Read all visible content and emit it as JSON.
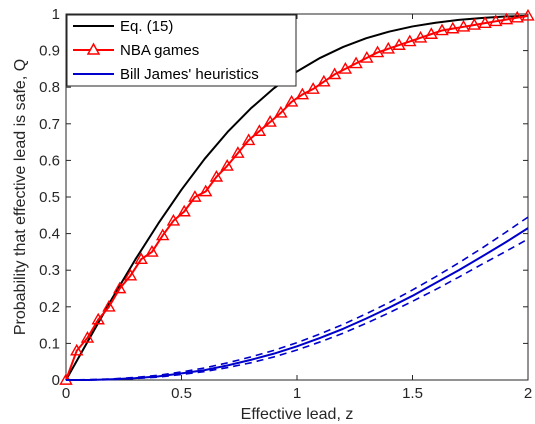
{
  "chart_data": {
    "type": "line",
    "title": "",
    "xlabel": "Effective lead, z",
    "ylabel": "Probability that effective lead is safe, Q",
    "xlim": [
      0,
      2
    ],
    "ylim": [
      0,
      1
    ],
    "xticks": [
      "0",
      "0.5",
      "1",
      "1.5",
      "2"
    ],
    "yticks": [
      "0",
      "0.1",
      "0.2",
      "0.3",
      "0.4",
      "0.5",
      "0.6",
      "0.7",
      "0.8",
      "0.9",
      "1"
    ],
    "grid": false,
    "legend_position": "top-left",
    "series": [
      {
        "name": "Eq. (15)",
        "color": "#000000",
        "style": "solid",
        "marker": "none",
        "x": [
          0,
          0.1,
          0.2,
          0.3,
          0.4,
          0.5,
          0.6,
          0.7,
          0.8,
          0.9,
          1.0,
          1.1,
          1.2,
          1.3,
          1.4,
          1.5,
          1.6,
          1.7,
          1.8,
          1.9,
          2.0
        ],
        "y": [
          0,
          0.112,
          0.223,
          0.329,
          0.428,
          0.52,
          0.604,
          0.678,
          0.742,
          0.797,
          0.843,
          0.88,
          0.91,
          0.934,
          0.952,
          0.966,
          0.976,
          0.984,
          0.989,
          0.993,
          0.995
        ]
      },
      {
        "name": "NBA games",
        "color": "#ff0000",
        "style": "solid",
        "marker": "triangle",
        "x": [
          0,
          0.0465,
          0.093,
          0.1395,
          0.186,
          0.2326,
          0.2791,
          0.3256,
          0.3721,
          0.4186,
          0.4651,
          0.5116,
          0.5581,
          0.6047,
          0.6512,
          0.6977,
          0.7442,
          0.7907,
          0.8372,
          0.8837,
          0.9302,
          0.9767,
          1.0233,
          1.0698,
          1.1163,
          1.1628,
          1.2093,
          1.2558,
          1.3023,
          1.3488,
          1.3953,
          1.4419,
          1.4884,
          1.5349,
          1.5814,
          1.6279,
          1.6744,
          1.7209,
          1.7674,
          1.814,
          1.8605,
          1.907,
          1.9535,
          2.0
        ],
        "y": [
          0,
          0.08,
          0.115,
          0.165,
          0.2,
          0.25,
          0.285,
          0.33,
          0.35,
          0.395,
          0.435,
          0.46,
          0.5,
          0.515,
          0.555,
          0.585,
          0.62,
          0.655,
          0.68,
          0.705,
          0.73,
          0.76,
          0.78,
          0.795,
          0.815,
          0.835,
          0.85,
          0.865,
          0.88,
          0.895,
          0.905,
          0.915,
          0.925,
          0.935,
          0.945,
          0.955,
          0.96,
          0.965,
          0.97,
          0.975,
          0.98,
          0.985,
          0.99,
          0.995
        ]
      },
      {
        "name": "Bill James' heuristics",
        "color": "#0000cc",
        "style": "solid",
        "marker": "none",
        "x": [
          0,
          0.1,
          0.2,
          0.3,
          0.4,
          0.5,
          0.6,
          0.7,
          0.8,
          0.9,
          1.0,
          1.1,
          1.2,
          1.3,
          1.4,
          1.5,
          1.6,
          1.7,
          1.8,
          1.9,
          2.0
        ],
        "y": [
          0,
          0.0,
          0.002,
          0.005,
          0.01,
          0.018,
          0.027,
          0.04,
          0.055,
          0.072,
          0.092,
          0.115,
          0.14,
          0.168,
          0.198,
          0.23,
          0.265,
          0.3,
          0.337,
          0.375,
          0.415
        ]
      },
      {
        "color": "#0000cc",
        "style": "dashed",
        "marker": "none",
        "x": [
          0,
          0.1,
          0.2,
          0.3,
          0.4,
          0.5,
          0.6,
          0.7,
          0.8,
          0.9,
          1.0,
          1.1,
          1.2,
          1.3,
          1.4,
          1.5,
          1.6,
          1.7,
          1.8,
          1.9,
          2.0
        ],
        "y": [
          0,
          0.001,
          0.003,
          0.007,
          0.013,
          0.022,
          0.033,
          0.047,
          0.063,
          0.081,
          0.102,
          0.126,
          0.152,
          0.181,
          0.212,
          0.246,
          0.282,
          0.32,
          0.36,
          0.402,
          0.445
        ]
      },
      {
        "color": "#0000cc",
        "style": "dashed",
        "marker": "none",
        "x": [
          0,
          0.1,
          0.2,
          0.3,
          0.4,
          0.5,
          0.6,
          0.7,
          0.8,
          0.9,
          1.0,
          1.1,
          1.2,
          1.3,
          1.4,
          1.5,
          1.6,
          1.7,
          1.8,
          1.9,
          2.0
        ],
        "y": [
          0,
          0.0,
          0.001,
          0.004,
          0.008,
          0.015,
          0.023,
          0.034,
          0.047,
          0.063,
          0.082,
          0.104,
          0.128,
          0.155,
          0.184,
          0.215,
          0.247,
          0.281,
          0.316,
          0.35,
          0.385
        ]
      }
    ]
  }
}
